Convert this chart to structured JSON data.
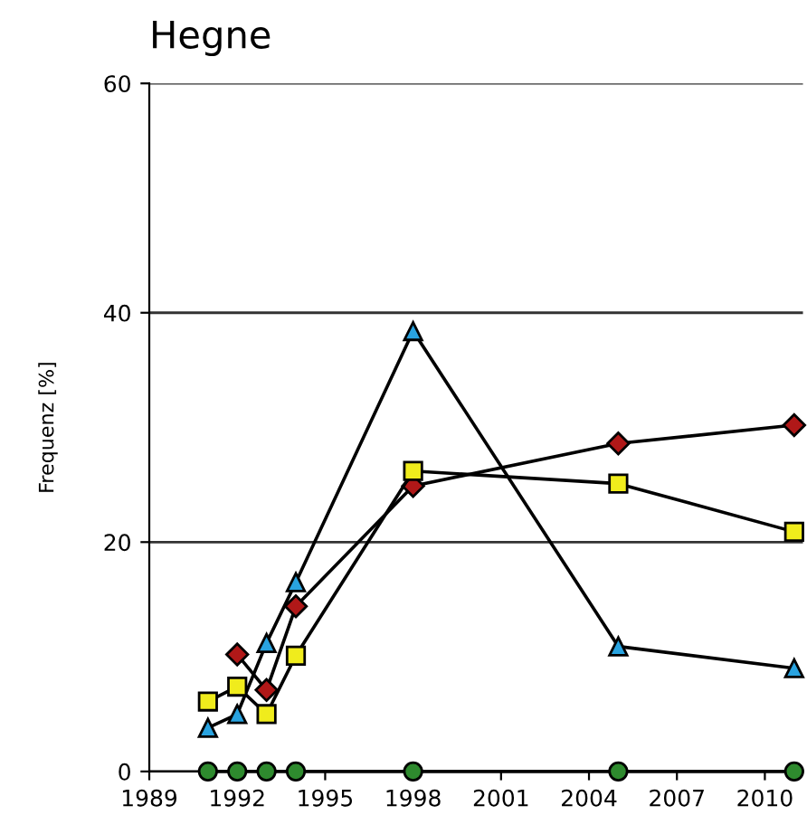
{
  "chart_data": {
    "type": "line",
    "title": "Hegne",
    "ylabel": "Frequenz [%]",
    "x": [
      1991,
      1992,
      1993,
      1994,
      1998,
      2005,
      2011
    ],
    "series": [
      {
        "color": "#29a3e0",
        "marker": "triangle",
        "values": [
          3.8,
          5.0,
          11.2,
          16.5,
          38.4,
          10.9,
          9.0
        ]
      },
      {
        "color": "#b01818",
        "marker": "diamond",
        "values": [
          null,
          10.2,
          7.1,
          14.4,
          24.9,
          28.6,
          30.2
        ]
      },
      {
        "color": "#f0ec1c",
        "marker": "square",
        "values": [
          6.1,
          7.4,
          5.0,
          10.1,
          26.2,
          25.1,
          20.9
        ]
      },
      {
        "color": "#2e8a2e",
        "marker": "circle",
        "values": [
          0,
          0,
          0,
          0,
          0,
          0,
          0
        ]
      }
    ],
    "xlim": [
      1989,
      2011.3
    ],
    "ylim": [
      0,
      60
    ],
    "xticks": [
      1989,
      1992,
      1995,
      1998,
      2001,
      2004,
      2007,
      2010
    ],
    "yticks": [
      0,
      20,
      40,
      60
    ],
    "grid": "y",
    "legend": false,
    "line_style": "solid"
  }
}
